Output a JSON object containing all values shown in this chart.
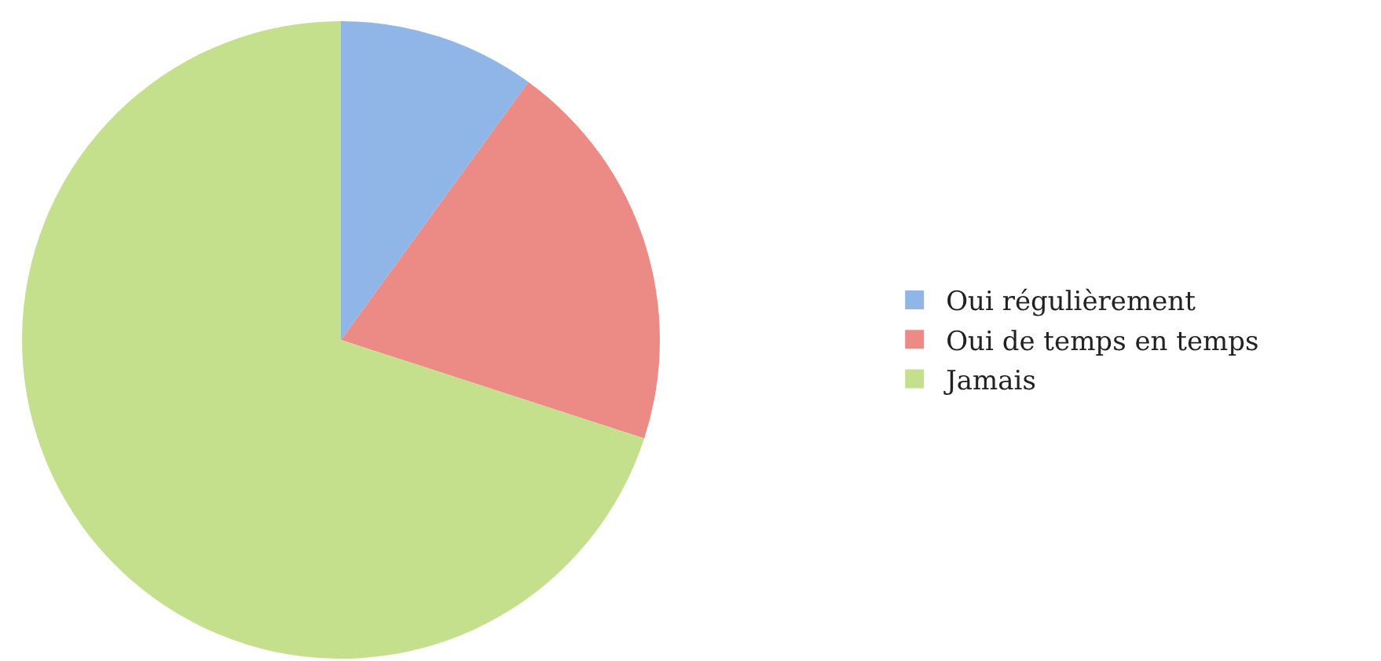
{
  "chart_data": {
    "type": "pie",
    "categories": [
      "Oui régulièrement",
      "Oui de temps en temps",
      "Jamais"
    ],
    "values": [
      10,
      20,
      70
    ],
    "colors": [
      "#8fb6e6",
      "#ec8a86",
      "#c5e08d"
    ],
    "legend": "right"
  }
}
